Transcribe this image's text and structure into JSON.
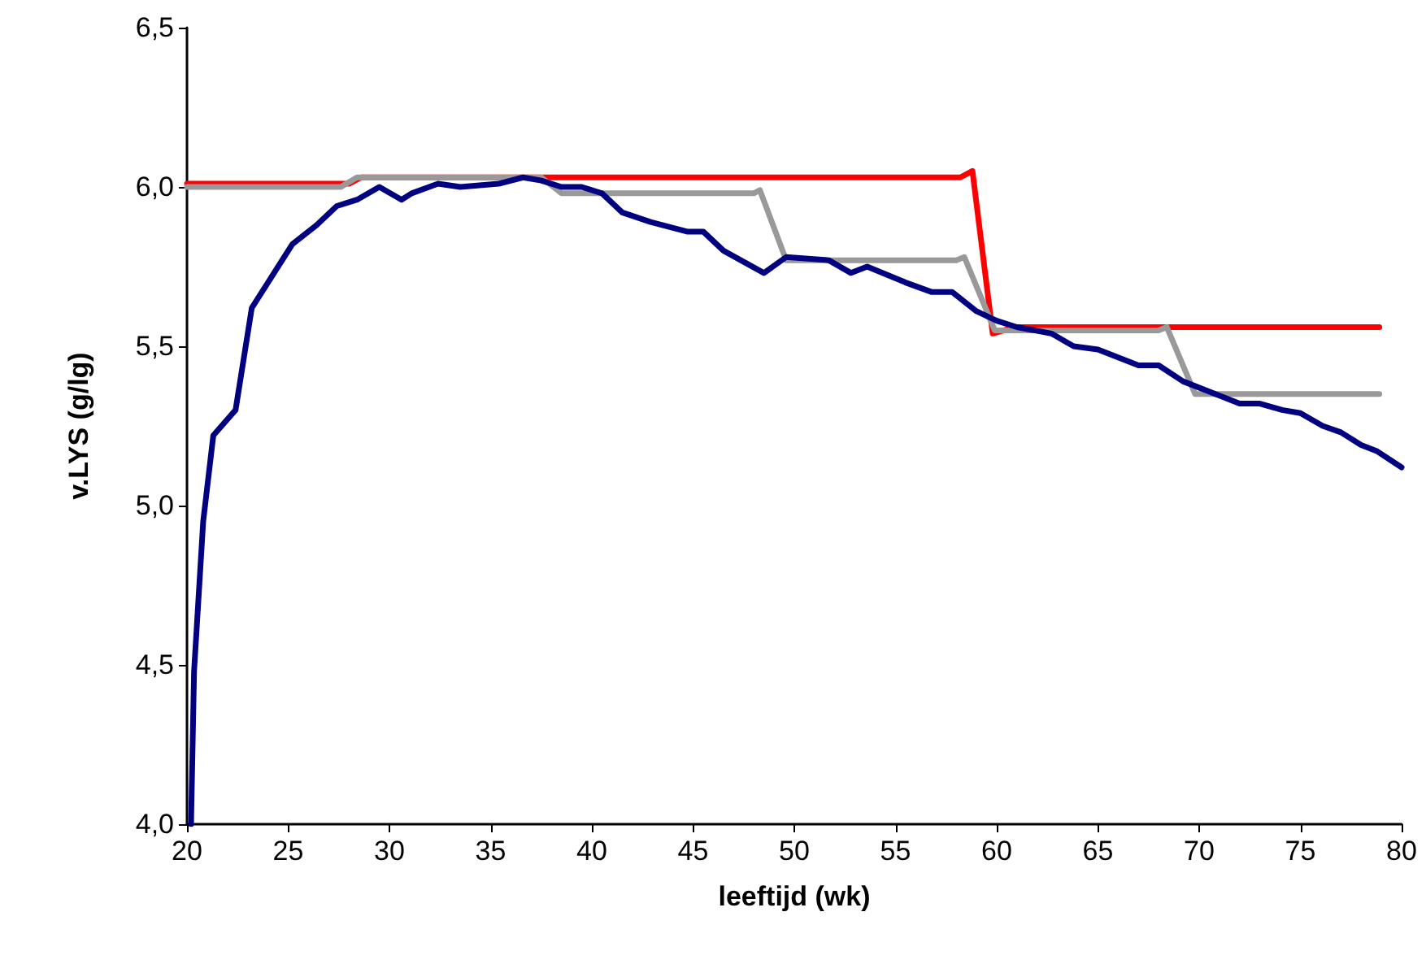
{
  "chart_data": {
    "type": "line",
    "xlabel": "leeftijd (wk)",
    "ylabel": "v.LYS (g/lg)",
    "xlim": [
      20,
      80
    ],
    "xticks": [
      20,
      25,
      30,
      35,
      40,
      45,
      50,
      55,
      60,
      65,
      70,
      75,
      80
    ],
    "ylim": [
      4,
      6.5
    ],
    "yticks": [
      {
        "value": 4,
        "label": "4,0"
      },
      {
        "value": 4.5,
        "label": "4,5"
      },
      {
        "value": 5,
        "label": "5,0"
      },
      {
        "value": 5.5,
        "label": "5,5"
      },
      {
        "value": 6,
        "label": "6,0"
      },
      {
        "value": 6.5,
        "label": "6,5"
      }
    ],
    "grid": false,
    "marker": "none",
    "line_style": "solid",
    "series": [
      {
        "color": "#ff0000",
        "x": [
          20,
          28.0,
          28.6,
          58.2,
          58.8,
          59.8,
          60.9,
          78.9
        ],
        "values": [
          6.01,
          6.01,
          6.03,
          6.03,
          6.05,
          5.54,
          5.56,
          5.56
        ]
      },
      {
        "color": "#999999",
        "x": [
          20,
          27.6,
          28.4,
          37.5,
          38.5,
          48.0,
          48.3,
          49.6,
          58.0,
          58.4,
          59.9,
          60.6,
          68.0,
          68.4,
          69.8,
          70.5,
          78.9
        ],
        "values": [
          6.0,
          6.0,
          6.03,
          6.03,
          5.98,
          5.98,
          5.99,
          5.77,
          5.77,
          5.78,
          5.55,
          5.55,
          5.55,
          5.56,
          5.35,
          5.35,
          5.35
        ]
      },
      {
        "color": "#000080",
        "x": [
          20.2,
          20.35,
          20.8,
          21.3,
          22.4,
          22.8,
          23.2,
          24.3,
          25.2,
          26.4,
          27.4,
          28.4,
          29.5,
          30.6,
          31.1,
          32.4,
          33.5,
          35.4,
          36.6,
          37.5,
          38.5,
          39.5,
          40.5,
          41.5,
          42.9,
          44.7,
          45.5,
          46.5,
          48.5,
          49.6,
          51.7,
          52.8,
          53.6,
          55.5,
          56.8,
          57.8,
          59.0,
          60.0,
          61.0,
          62.7,
          63.8,
          65.0,
          67.0,
          68.0,
          69.2,
          70.8,
          72.0,
          73.0,
          74.1,
          75.0,
          76.1,
          77.0,
          78.0,
          78.8,
          80.0
        ],
        "values": [
          4.0,
          4.48,
          4.95,
          5.22,
          5.3,
          5.46,
          5.62,
          5.73,
          5.82,
          5.88,
          5.94,
          5.96,
          6.0,
          5.96,
          5.98,
          6.01,
          6.0,
          6.01,
          6.03,
          6.02,
          6.0,
          6.0,
          5.98,
          5.92,
          5.89,
          5.86,
          5.86,
          5.8,
          5.73,
          5.78,
          5.77,
          5.73,
          5.75,
          5.7,
          5.67,
          5.67,
          5.61,
          5.58,
          5.56,
          5.54,
          5.5,
          5.49,
          5.44,
          5.44,
          5.39,
          5.35,
          5.32,
          5.32,
          5.3,
          5.29,
          5.25,
          5.23,
          5.19,
          5.17,
          5.12
        ]
      }
    ]
  }
}
